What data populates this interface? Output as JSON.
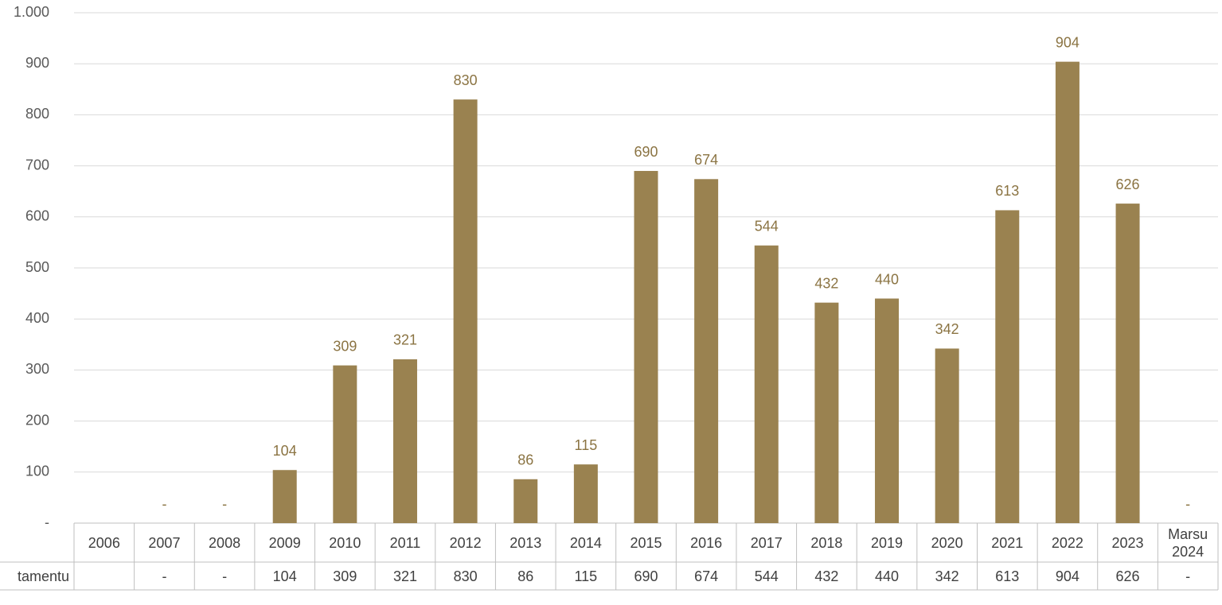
{
  "chart_data": {
    "type": "bar",
    "categories": [
      "2006",
      "2007",
      "2008",
      "2009",
      "2010",
      "2011",
      "2012",
      "2013",
      "2014",
      "2015",
      "2016",
      "2017",
      "2018",
      "2019",
      "2020",
      "2021",
      "2022",
      "2023",
      "Marsu 2024"
    ],
    "series": [
      {
        "name": "tamentu",
        "color": "#9a8250",
        "values": [
          null,
          0,
          0,
          104,
          309,
          321,
          830,
          86,
          115,
          690,
          674,
          544,
          432,
          440,
          342,
          613,
          904,
          626,
          0
        ],
        "value_labels": [
          null,
          "-",
          "-",
          "104",
          "309",
          "321",
          "830",
          "86",
          "115",
          "690",
          "674",
          "544",
          "432",
          "440",
          "342",
          "613",
          "904",
          "626",
          "-"
        ]
      }
    ],
    "ylim": [
      0,
      1000
    ],
    "yticks": [
      {
        "value": 0,
        "label": "-"
      },
      100,
      200,
      300,
      400,
      500,
      600,
      700,
      800,
      900,
      {
        "value": 1000,
        "label": "1.000"
      }
    ],
    "grid": true
  }
}
